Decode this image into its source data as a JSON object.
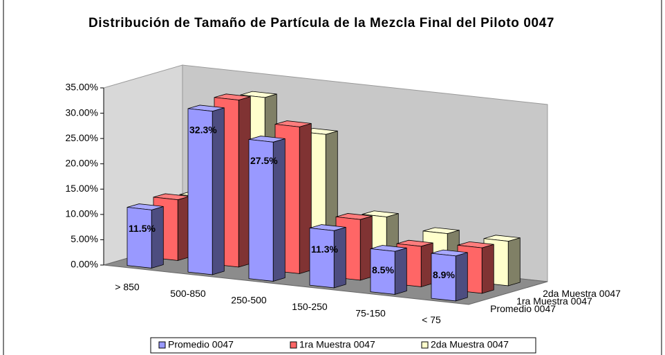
{
  "chart_data": {
    "type": "bar3d",
    "title": "Distribución de Tamaño de Partícula de la Mezcla Final del Piloto 0047",
    "categories": [
      "> 850",
      "500-850",
      "250-500",
      "150-250",
      "75-150",
      "< 75"
    ],
    "series": [
      {
        "name": "Promedio 0047",
        "color": "#9999ff",
        "values": [
          11.5,
          32.3,
          27.5,
          11.3,
          8.5,
          8.9
        ],
        "value_labels": [
          "11.5%",
          "32.3%",
          "27.5%",
          "11.3%",
          "8.5%",
          "8.9%"
        ]
      },
      {
        "name": "1ra Muestra 0047",
        "color": "#ff6666",
        "values": [
          12,
          33,
          29,
          12,
          8,
          9
        ]
      },
      {
        "name": "2da Muestra 0047",
        "color": "#ffffcc",
        "values": [
          11,
          32,
          26,
          11,
          9,
          8.8
        ]
      }
    ],
    "ylim": [
      0,
      35
    ],
    "yticks": [
      {
        "value": 0,
        "label": "0.00%"
      },
      {
        "value": 5,
        "label": "5.00%"
      },
      {
        "value": 10,
        "label": "10.00%"
      },
      {
        "value": 15,
        "label": "15.00%"
      },
      {
        "value": 20,
        "label": "20.00%"
      },
      {
        "value": 25,
        "label": "25.00%"
      },
      {
        "value": 30,
        "label": "30.00%"
      },
      {
        "value": 35,
        "label": "35.00%"
      }
    ],
    "grid": false,
    "legend": "bottom"
  }
}
